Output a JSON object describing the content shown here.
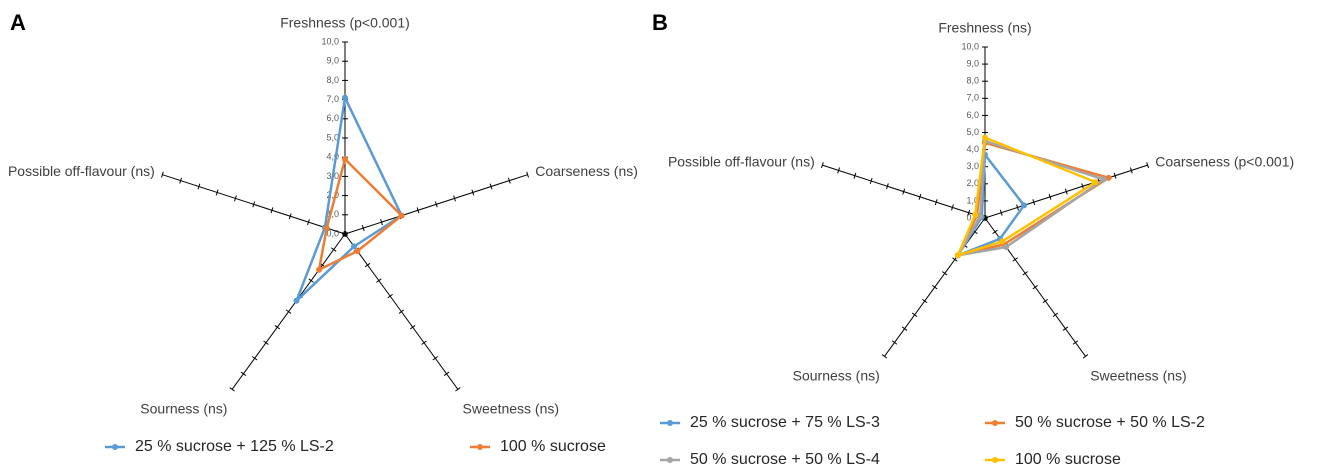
{
  "chart_data": [
    {
      "type": "radar",
      "panel": "A",
      "categories": [
        "Freshness (p<0.001)",
        "Coarseness (ns)",
        "Sweetness (ns)",
        "Sourness (ns)",
        "Possible off-flavour (ns)"
      ],
      "rlim": [
        0,
        10
      ],
      "rticks": [
        {
          "value": 0,
          "label": "0,0"
        },
        {
          "value": 1,
          "label": "1,0"
        },
        {
          "value": 2,
          "label": "2,0"
        },
        {
          "value": 3,
          "label": "3,0"
        },
        {
          "value": 4,
          "label": "4,0"
        },
        {
          "value": 5,
          "label": "5,0"
        },
        {
          "value": 6,
          "label": "6,0"
        },
        {
          "value": 7,
          "label": "7,0"
        },
        {
          "value": 8,
          "label": "8,0"
        },
        {
          "value": 9,
          "label": "9,0"
        },
        {
          "value": 10,
          "label": "10,0"
        }
      ],
      "series": [
        {
          "name": "25 % sucrose + 125 % LS-2",
          "color": "#5b9bd5",
          "values": [
            7.1,
            3.1,
            0.8,
            4.3,
            1.1
          ]
        },
        {
          "name": "100 % sucrose",
          "color": "#ed7d31",
          "values": [
            3.9,
            3.1,
            1.1,
            2.3,
            1.0
          ]
        }
      ]
    },
    {
      "type": "radar",
      "panel": "B",
      "categories": [
        "Freshness (ns)",
        "Coarseness (p<0.001)",
        "Sweetness (ns)",
        "Sourness (ns)",
        "Possible off-flavour (ns)"
      ],
      "rlim": [
        0,
        10
      ],
      "rticks": [
        {
          "value": 0,
          "label": "0,0"
        },
        {
          "value": 1,
          "label": "1,0"
        },
        {
          "value": 2,
          "label": "2,0"
        },
        {
          "value": 3,
          "label": "3,0"
        },
        {
          "value": 4,
          "label": "4,0"
        },
        {
          "value": 5,
          "label": "5,0"
        },
        {
          "value": 6,
          "label": "6,0"
        },
        {
          "value": 7,
          "label": "7,0"
        },
        {
          "value": 8,
          "label": "8,0"
        },
        {
          "value": 9,
          "label": "9,0"
        },
        {
          "value": 10,
          "label": "10,0"
        }
      ],
      "series": [
        {
          "name": "25 % sucrose + 75 % LS-3",
          "color": "#5b9bd5",
          "values": [
            3.7,
            2.4,
            1.5,
            2.7,
            0.2
          ]
        },
        {
          "name": "50 % sucrose + 50 % LS-2",
          "color": "#ed7d31",
          "values": [
            4.4,
            7.6,
            1.9,
            2.7,
            0.5
          ]
        },
        {
          "name": "50 % sucrose + 50 % LS-4",
          "color": "#a5a5a5",
          "values": [
            4.5,
            7.3,
            2.1,
            2.7,
            0.3
          ]
        },
        {
          "name": "100 % sucrose",
          "color": "#ffc000",
          "values": [
            4.7,
            6.8,
            1.7,
            2.7,
            0.6
          ]
        }
      ]
    }
  ]
}
